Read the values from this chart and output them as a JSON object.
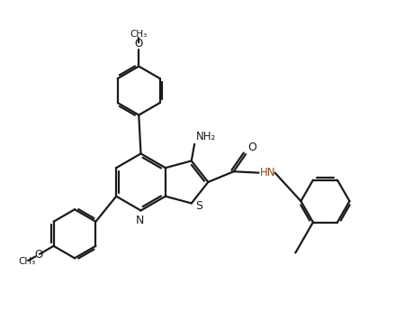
{
  "bg_color": "#ffffff",
  "line_color": "#1a1a1a",
  "line_width": 1.6,
  "fig_width": 4.59,
  "fig_height": 3.66,
  "dpi": 100,
  "xlim": [
    0,
    10
  ],
  "ylim": [
    0,
    8
  ]
}
